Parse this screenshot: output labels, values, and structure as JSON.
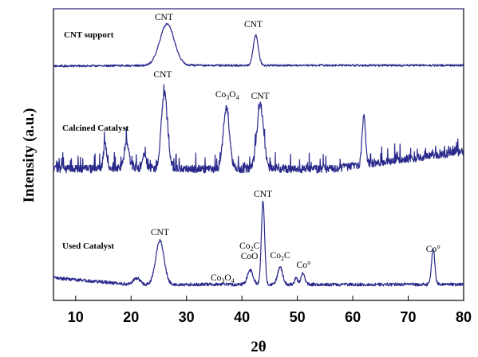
{
  "chart_data": {
    "type": "line",
    "title": "",
    "xlabel": "2θ",
    "ylabel": "Intensity (a.u.)",
    "xlim": [
      6,
      80
    ],
    "x_ticks": [
      "10",
      "20",
      "30",
      "40",
      "50",
      "60",
      "70",
      "80"
    ],
    "y_ticks_shown": false,
    "grid": false,
    "line_color": "#2a2a8c",
    "series": [
      {
        "name": "CNT support",
        "peaks": [
          {
            "x": 26.5,
            "label": "CNT"
          },
          {
            "x": 42.5,
            "label": "CNT"
          }
        ]
      },
      {
        "name": "Calcined Catalyst",
        "peaks": [
          {
            "x": 26.0,
            "label": "CNT"
          },
          {
            "x": 37.2,
            "label": "Co3O4"
          },
          {
            "x": 43.3,
            "label": "CNT"
          },
          {
            "x": 62.0,
            "label": ""
          }
        ]
      },
      {
        "name": "Used Catalyst",
        "peaks": [
          {
            "x": 25.2,
            "label": "CNT"
          },
          {
            "x": 36.5,
            "label": "Co3O4"
          },
          {
            "x": 41.5,
            "label": "Co2C\nCoO"
          },
          {
            "x": 43.8,
            "label": "CNT"
          },
          {
            "x": 46.9,
            "label": "Co2C"
          },
          {
            "x": 51.0,
            "label": "Co°"
          },
          {
            "x": 74.5,
            "label": "Co°"
          }
        ]
      }
    ]
  }
}
